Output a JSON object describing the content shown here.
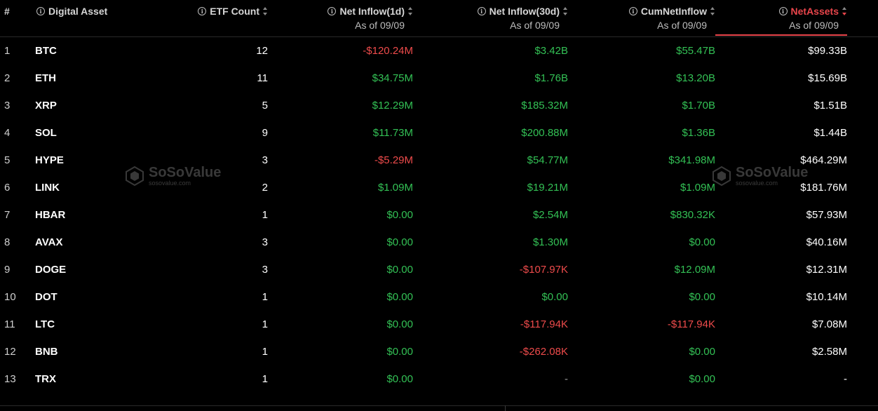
{
  "header": {
    "index": "#",
    "asset": "Digital Asset",
    "etf_count": "ETF Count",
    "inflow_1d": "Net Inflow(1d)",
    "inflow_1d_sub": "As of 09/09",
    "inflow_30d": "Net Inflow(30d)",
    "inflow_30d_sub": "As of 09/09",
    "cum": "CumNetInflow",
    "cum_sub": "As of 09/09",
    "net_assets": "NetAssets",
    "net_assets_sub": "As of 09/09"
  },
  "colors": {
    "positive": "#33c155",
    "negative": "#ee4b4b",
    "active_sort": "#e9454b",
    "background": "#000000"
  },
  "watermark": {
    "name": "SoSoValue",
    "domain": "sosovalue.com"
  },
  "rows": [
    {
      "idx": "1",
      "asset": "BTC",
      "count": "12",
      "in1d": "-$120.24M",
      "in30": "$3.42B",
      "cum": "$55.47B",
      "net": "$99.33B"
    },
    {
      "idx": "2",
      "asset": "ETH",
      "count": "11",
      "in1d": "$34.75M",
      "in30": "$1.76B",
      "cum": "$13.20B",
      "net": "$15.69B"
    },
    {
      "idx": "3",
      "asset": "XRP",
      "count": "5",
      "in1d": "$12.29M",
      "in30": "$185.32M",
      "cum": "$1.70B",
      "net": "$1.51B"
    },
    {
      "idx": "4",
      "asset": "SOL",
      "count": "9",
      "in1d": "$11.73M",
      "in30": "$200.88M",
      "cum": "$1.36B",
      "net": "$1.44B"
    },
    {
      "idx": "5",
      "asset": "HYPE",
      "count": "3",
      "in1d": "-$5.29M",
      "in30": "$54.77M",
      "cum": "$341.98M",
      "net": "$464.29M"
    },
    {
      "idx": "6",
      "asset": "LINK",
      "count": "2",
      "in1d": "$1.09M",
      "in30": "$19.21M",
      "cum": "$1.09M",
      "net": "$181.76M"
    },
    {
      "idx": "7",
      "asset": "HBAR",
      "count": "1",
      "in1d": "$0.00",
      "in30": "$2.54M",
      "cum": "$830.32K",
      "net": "$57.93M"
    },
    {
      "idx": "8",
      "asset": "AVAX",
      "count": "3",
      "in1d": "$0.00",
      "in30": "$1.30M",
      "cum": "$0.00",
      "net": "$40.16M"
    },
    {
      "idx": "9",
      "asset": "DOGE",
      "count": "3",
      "in1d": "$0.00",
      "in30": "-$107.97K",
      "cum": "$12.09M",
      "net": "$12.31M"
    },
    {
      "idx": "10",
      "asset": "DOT",
      "count": "1",
      "in1d": "$0.00",
      "in30": "$0.00",
      "cum": "$0.00",
      "net": "$10.14M"
    },
    {
      "idx": "11",
      "asset": "LTC",
      "count": "1",
      "in1d": "$0.00",
      "in30": "-$117.94K",
      "cum": "-$117.94K",
      "net": "$7.08M"
    },
    {
      "idx": "12",
      "asset": "BNB",
      "count": "1",
      "in1d": "$0.00",
      "in30": "-$262.08K",
      "cum": "$0.00",
      "net": "$2.58M"
    },
    {
      "idx": "13",
      "asset": "TRX",
      "count": "1",
      "in1d": "$0.00",
      "in30": "-",
      "cum": "$0.00",
      "net": "-"
    }
  ]
}
